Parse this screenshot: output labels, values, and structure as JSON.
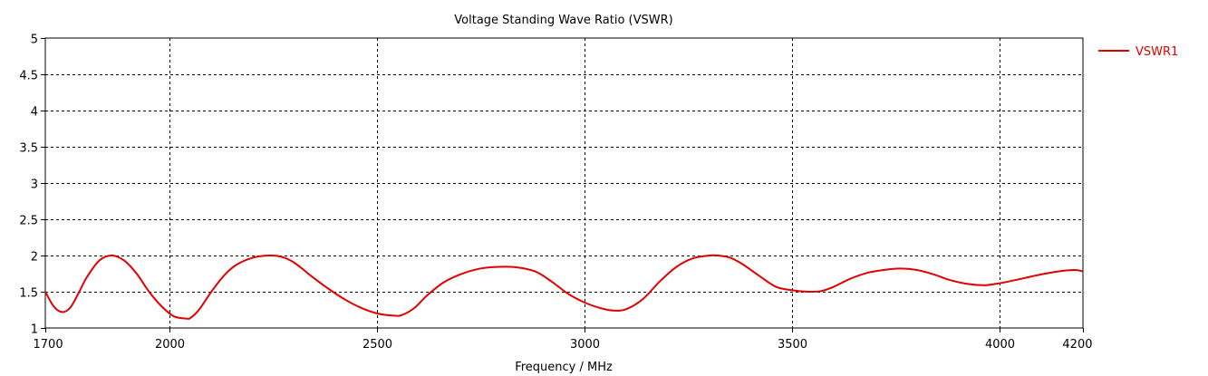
{
  "chart_data": {
    "type": "line",
    "title": "Voltage Standing Wave Ratio (VSWR)",
    "xlabel": "Frequency / MHz",
    "ylabel": "",
    "xlim": [
      1700,
      4200
    ],
    "ylim": [
      1,
      5
    ],
    "x_ticks": [
      "1700",
      "2000",
      "2500",
      "3000",
      "3500",
      "4000",
      "4200"
    ],
    "x_tick_values": [
      1700,
      2000,
      2500,
      3000,
      3500,
      4000,
      4200
    ],
    "y_ticks": [
      "1",
      "1.5",
      "2",
      "2.5",
      "3",
      "3.5",
      "4",
      "4.5",
      "5"
    ],
    "y_tick_values": [
      1,
      1.5,
      2,
      2.5,
      3,
      3.5,
      4,
      4.5,
      5
    ],
    "grid": true,
    "legend_position": "top-right",
    "series": [
      {
        "name": "VSWR1",
        "color": "#e00000",
        "x": [
          1700,
          1720,
          1740,
          1760,
          1780,
          1800,
          1830,
          1860,
          1890,
          1920,
          1950,
          1980,
          2010,
          2040,
          2050,
          2070,
          2100,
          2130,
          2160,
          2200,
          2240,
          2270,
          2300,
          2340,
          2380,
          2420,
          2460,
          2500,
          2540,
          2560,
          2590,
          2620,
          2660,
          2700,
          2740,
          2780,
          2830,
          2880,
          2920,
          2960,
          3000,
          3040,
          3070,
          3100,
          3140,
          3180,
          3220,
          3260,
          3300,
          3320,
          3350,
          3380,
          3420,
          3460,
          3500,
          3540,
          3570,
          3600,
          3640,
          3680,
          3720,
          3760,
          3800,
          3840,
          3880,
          3920,
          3960,
          3980,
          4020,
          4060,
          4100,
          4140,
          4180,
          4200
        ],
        "values": [
          1.5,
          1.3,
          1.22,
          1.28,
          1.48,
          1.7,
          1.93,
          2.0,
          1.93,
          1.75,
          1.5,
          1.3,
          1.16,
          1.13,
          1.14,
          1.25,
          1.5,
          1.72,
          1.87,
          1.97,
          2.0,
          1.98,
          1.9,
          1.72,
          1.55,
          1.4,
          1.28,
          1.2,
          1.17,
          1.18,
          1.28,
          1.45,
          1.63,
          1.74,
          1.81,
          1.84,
          1.84,
          1.78,
          1.64,
          1.47,
          1.35,
          1.27,
          1.24,
          1.26,
          1.4,
          1.64,
          1.84,
          1.96,
          2.0,
          2.0,
          1.97,
          1.88,
          1.72,
          1.57,
          1.52,
          1.5,
          1.51,
          1.57,
          1.68,
          1.76,
          1.8,
          1.82,
          1.8,
          1.74,
          1.66,
          1.61,
          1.59,
          1.6,
          1.64,
          1.69,
          1.74,
          1.78,
          1.8,
          1.78
        ]
      }
    ]
  }
}
